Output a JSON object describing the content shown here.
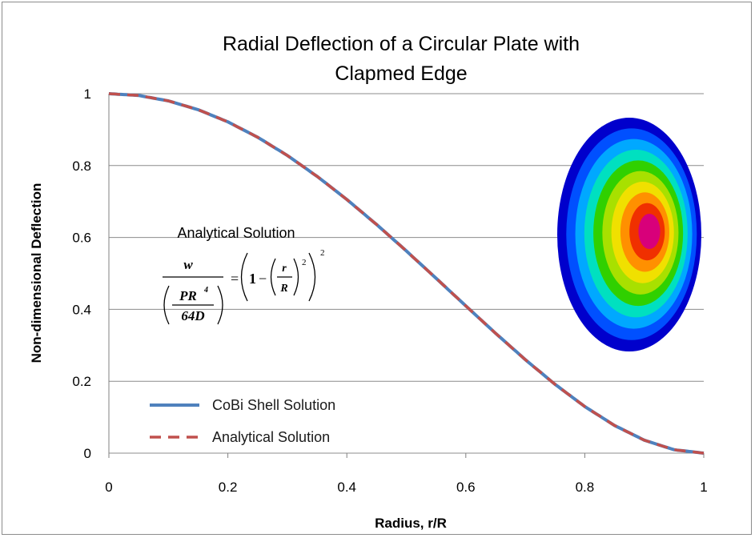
{
  "chart_data": {
    "type": "line",
    "title_line1": "Radial Deflection of a Circular Plate with",
    "title_line2": "Clapmed Edge",
    "xlabel": "Radius, r/R",
    "ylabel": "Non-dimensional Deflection",
    "xlim": [
      0,
      1
    ],
    "ylim": [
      0,
      1
    ],
    "x_ticks": [
      "0",
      "0.2",
      "0.4",
      "0.6",
      "0.8",
      "1"
    ],
    "y_ticks": [
      "0",
      "0.2",
      "0.4",
      "0.6",
      "0.8",
      "1"
    ],
    "grid": "horizontal",
    "legend_position": "bottom-left",
    "series": [
      {
        "name": "CoBi Shell Solution",
        "color": "#4f81bd",
        "style": "solid",
        "x": [
          0,
          0.05,
          0.1,
          0.15,
          0.2,
          0.25,
          0.3,
          0.35,
          0.4,
          0.45,
          0.5,
          0.55,
          0.6,
          0.65,
          0.7,
          0.75,
          0.8,
          0.85,
          0.9,
          0.95,
          1.0
        ],
        "y": [
          1.0,
          0.995,
          0.98,
          0.9555,
          0.9216,
          0.8789,
          0.8281,
          0.77,
          0.7056,
          0.636,
          0.5625,
          0.4865,
          0.4096,
          0.3335,
          0.2601,
          0.1914,
          0.1296,
          0.077,
          0.0361,
          0.0095,
          0.0
        ]
      },
      {
        "name": "Analytical Solution",
        "color": "#c0504d",
        "style": "dashed",
        "x": [
          0,
          0.05,
          0.1,
          0.15,
          0.2,
          0.25,
          0.3,
          0.35,
          0.4,
          0.45,
          0.5,
          0.55,
          0.6,
          0.65,
          0.7,
          0.75,
          0.8,
          0.85,
          0.9,
          0.95,
          1.0
        ],
        "y": [
          1.0,
          0.995,
          0.98,
          0.9555,
          0.9216,
          0.8789,
          0.8281,
          0.77,
          0.7056,
          0.636,
          0.5625,
          0.4865,
          0.4096,
          0.3335,
          0.2601,
          0.1914,
          0.1296,
          0.077,
          0.0361,
          0.0095,
          0.0
        ]
      }
    ],
    "annotation": {
      "label": "Analytical Solution",
      "num_w": "w",
      "den_pr": "PR",
      "den_exp": "4",
      "den_d": "64D",
      "one": "1",
      "minus": "−",
      "r": "r",
      "R": "R",
      "exp2": "2",
      "equals": "="
    },
    "contour_colors": [
      "#0000cc",
      "#0050ff",
      "#00a8ff",
      "#00e0c0",
      "#30d000",
      "#a8e000",
      "#f0e000",
      "#ff9000",
      "#f03000",
      "#d8007a"
    ]
  }
}
